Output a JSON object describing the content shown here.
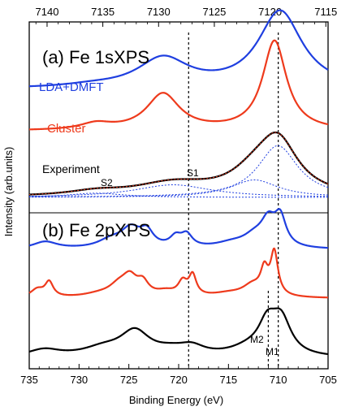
{
  "chart_data": {
    "type": "line",
    "xlabel": "Binding Energy (eV)",
    "ylabel": "Intensity (arb.units)",
    "xlim": [
      735,
      705
    ],
    "xlim_top": [
      7141.6,
      7114.8
    ],
    "x_ticks": [
      735,
      730,
      725,
      720,
      715,
      710,
      705
    ],
    "x_ticks_top": [
      7140,
      7135,
      7130,
      7125,
      7120,
      7115
    ],
    "colors": {
      "lda_dmft": "#1f3fe0",
      "cluster": "#ee3a1c",
      "experiment": "#000000",
      "components": "#1f3fe0"
    },
    "panels": [
      {
        "title": "(a) Fe 1sXPS",
        "series": [
          {
            "name": "LDA+DMFT",
            "offset": 1.55,
            "peaks": [
              [
                7119.1,
                1.1,
                2.4
              ],
              [
                7129.6,
                0.42,
                2.8
              ],
              [
                7136.0,
                0.03,
                3.0
              ]
            ]
          },
          {
            "name": "Cluster",
            "offset": 0.95,
            "peaks": [
              [
                7119.6,
                1.28,
                1.3
              ],
              [
                7129.6,
                0.52,
                1.8
              ],
              [
                7135.6,
                0.09,
                1.7
              ]
            ]
          },
          {
            "name": "Experiment",
            "offset": 0.0,
            "peaks": [
              [
                7119.3,
                0.74,
                2.2
              ],
              [
                7121.4,
                0.25,
                2.6
              ],
              [
                7128.7,
                0.18,
                4.2
              ],
              [
                7135.6,
                0.06,
                3.0
              ]
            ]
          }
        ],
        "components": [
          {
            "center": 7119.3,
            "height": 0.74,
            "width": 2.2
          },
          {
            "center": 7121.4,
            "height": 0.25,
            "width": 2.6
          },
          {
            "center": 7128.7,
            "height": 0.18,
            "width": 4.2
          },
          {
            "center": 7135.6,
            "height": 0.06,
            "width": 3.0
          }
        ],
        "annotations": [
          {
            "text": "S2",
            "x": 727.2
          },
          {
            "text": "S1",
            "x": 717.8
          }
        ]
      },
      {
        "title": "(b) Fe 2pXPS",
        "series": [
          {
            "name": "LDA+DMFT",
            "offset": 1.78,
            "peaks": [
              [
                709.8,
                0.46,
                0.7
              ],
              [
                711.0,
                0.4,
                0.9
              ],
              [
                712.4,
                0.17,
                1.4
              ],
              [
                714.7,
                0.08,
                2.0
              ],
              [
                719.2,
                0.2,
                0.7
              ],
              [
                720.3,
                0.16,
                0.7
              ],
              [
                723.2,
                0.24,
                0.8
              ],
              [
                724.8,
                0.3,
                1.2
              ],
              [
                726.8,
                0.13,
                1.6
              ],
              [
                733.4,
                0.12,
                1.5
              ]
            ]
          },
          {
            "name": "Cluster",
            "offset": 0.98,
            "peaks": [
              [
                710.4,
                0.7,
                0.45
              ],
              [
                711.4,
                0.38,
                0.45
              ],
              [
                712.6,
                0.18,
                1.2
              ],
              [
                715.0,
                0.06,
                2.0
              ],
              [
                718.6,
                0.33,
                0.45
              ],
              [
                719.6,
                0.22,
                0.55
              ],
              [
                721.3,
                0.08,
                1.2
              ],
              [
                723.6,
                0.2,
                0.7
              ],
              [
                724.9,
                0.28,
                0.9
              ],
              [
                726.0,
                0.17,
                1.2
              ],
              [
                728.0,
                0.05,
                2.0
              ],
              [
                733.0,
                0.24,
                0.5
              ],
              [
                734.2,
                0.13,
                0.8
              ]
            ]
          },
          {
            "name": "Experiment",
            "offset": 0.0,
            "peaks": [
              [
                709.7,
                0.56,
                1.2
              ],
              [
                711.1,
                0.46,
                1.1
              ],
              [
                713.0,
                0.12,
                2.3
              ],
              [
                718.7,
                0.14,
                1.6
              ],
              [
                720.8,
                0.08,
                2.0
              ],
              [
                724.4,
                0.4,
                1.8
              ],
              [
                727.6,
                0.13,
                2.5
              ],
              [
                733.5,
                0.12,
                2.0
              ]
            ]
          }
        ],
        "annotations": [
          {
            "text": "M2",
            "x": 710.9
          },
          {
            "text": "M1",
            "x": 709.8
          }
        ]
      }
    ],
    "reference_lines": [
      {
        "x": 719.0,
        "extent": "both"
      },
      {
        "x": 710.0,
        "extent": "both"
      },
      {
        "x": 711.0,
        "extent": "b"
      }
    ]
  }
}
